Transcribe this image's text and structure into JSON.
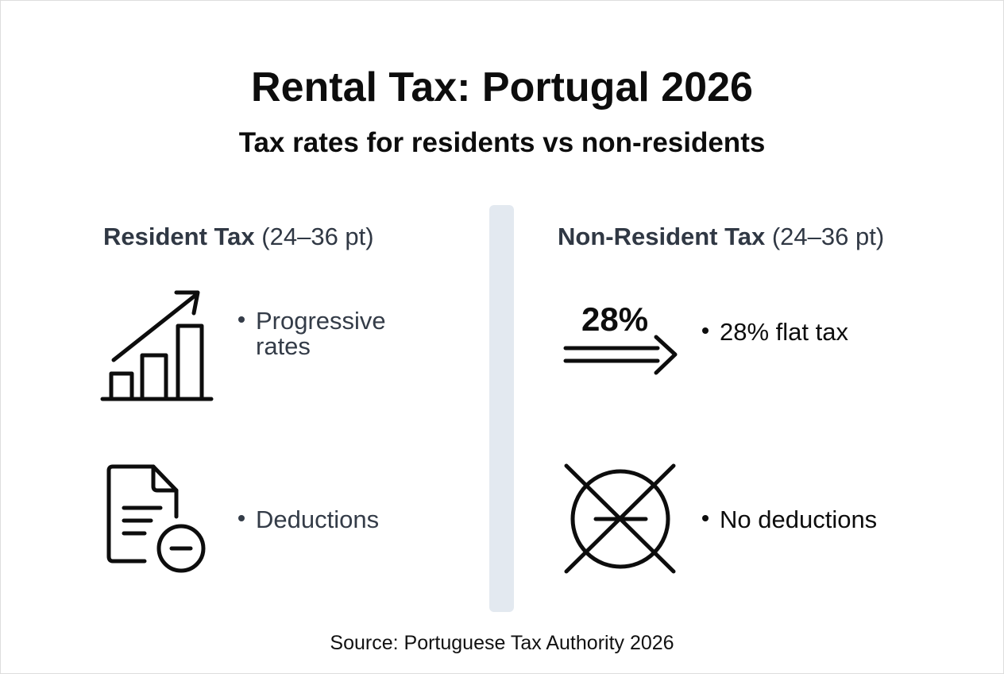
{
  "title": "Rental Tax: Portugal 2026",
  "subtitle": "Tax rates for residents vs non-residents",
  "resident": {
    "heading_bold": "Resident Tax",
    "heading_note": "(24–36 pt)",
    "items": [
      {
        "icon": "bar-chart-growth-icon",
        "text": "Progressive rates"
      },
      {
        "icon": "document-minus-icon",
        "text": "Deductions"
      }
    ]
  },
  "non_resident": {
    "heading_bold": "Non-Resident Tax",
    "heading_note": "(24–36 pt)",
    "icon_label": "28%",
    "items": [
      {
        "icon": "double-arrow-icon",
        "text": "28% flat tax"
      },
      {
        "icon": "crossed-out-circle-minus-icon",
        "text": "No deductions"
      }
    ]
  },
  "source": "Source: Portuguese Tax Authority 2026",
  "colors": {
    "divider": "#e3e9f0",
    "heading": "#303844"
  }
}
